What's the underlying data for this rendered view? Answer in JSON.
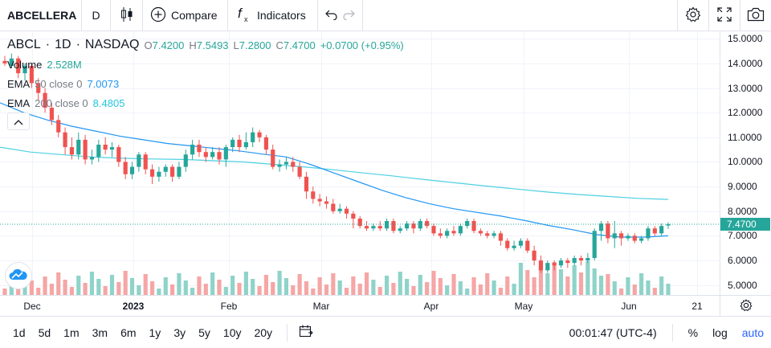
{
  "toolbar": {
    "symbol": "ABCELLERA",
    "interval": "D",
    "compare_label": "Compare",
    "indicators_label": "Indicators",
    "icons": [
      "candles-icon",
      "plus-circle-icon",
      "fx-icon",
      "undo-icon",
      "redo-icon",
      "settings-icon",
      "fullscreen-icon",
      "camera-icon"
    ]
  },
  "legend": {
    "ticker": "ABCL",
    "interval": "1D",
    "exchange": "NASDAQ",
    "open_label": "O",
    "open": "7.4200",
    "high_label": "H",
    "high": "7.5493",
    "low_label": "L",
    "low": "7.2800",
    "close_label": "C",
    "close": "7.4700",
    "change": "+0.0700 (+0.95%)",
    "volume_label": "Volume",
    "volume": "2.528M",
    "ema50_label": "EMA",
    "ema50_params": "50 close 0",
    "ema50_value": "7.0073",
    "ema200_label": "EMA",
    "ema200_params": "200 close 0",
    "ema200_value": "8.4805"
  },
  "price_axis": {
    "ticks": [
      "15.0000",
      "14.0000",
      "13.0000",
      "12.0000",
      "11.0000",
      "10.0000",
      "9.0000",
      "8.0000",
      "7.0000",
      "6.0000",
      "5.0000"
    ],
    "last_price": "7.4700"
  },
  "time_axis": {
    "ticks": [
      {
        "label": "Dec",
        "bold": false
      },
      {
        "label": "2023",
        "bold": true
      },
      {
        "label": "Feb",
        "bold": false
      },
      {
        "label": "Mar",
        "bold": false
      },
      {
        "label": "Apr",
        "bold": false
      },
      {
        "label": "May",
        "bold": false
      },
      {
        "label": "Jun",
        "bold": false
      },
      {
        "label": "21",
        "bold": false
      }
    ]
  },
  "bottom": {
    "ranges": [
      "1d",
      "5d",
      "1m",
      "3m",
      "6m",
      "1y",
      "3y",
      "5y",
      "10y",
      "20y"
    ],
    "time": "00:01:47 (UTC-4)",
    "percent": "%",
    "log": "log",
    "auto": "auto"
  },
  "colors": {
    "up": "#26a69a",
    "down": "#ef5350",
    "ema50": "#2196f3",
    "ema200": "#4dd0e1",
    "volume_up": "#8fd3c9",
    "volume_down": "#f5a6a5"
  },
  "chart_data": {
    "type": "candlestick",
    "ylim": [
      4.6,
      15.3
    ],
    "ema50": [
      12.4,
      12.0,
      11.7,
      11.45,
      11.25,
      11.05,
      10.9,
      10.75,
      10.65,
      10.55,
      10.45,
      10.32,
      10.2,
      9.9,
      9.55,
      9.2,
      8.85,
      8.55,
      8.3,
      8.1,
      7.95,
      7.8,
      7.62,
      7.42,
      7.25,
      7.05,
      6.95,
      6.95,
      7.0
    ],
    "ema200": [
      10.6,
      10.4,
      10.3,
      10.2,
      10.15,
      10.12,
      10.1,
      10.05,
      10.0,
      9.9,
      9.8,
      9.68,
      9.55,
      9.42,
      9.28,
      9.15,
      9.02,
      8.9,
      8.78,
      8.68,
      8.6,
      8.52,
      8.48
    ],
    "candles": [
      [
        14.1,
        14.0,
        14.3,
        13.9
      ],
      [
        13.9,
        14.2,
        14.4,
        13.8
      ],
      [
        14.2,
        13.6,
        14.3,
        13.4
      ],
      [
        13.6,
        13.9,
        14.0,
        13.3
      ],
      [
        13.9,
        13.2,
        14.0,
        13.0
      ],
      [
        13.2,
        12.8,
        13.4,
        12.5
      ],
      [
        12.8,
        12.2,
        13.0,
        12.0
      ],
      [
        12.2,
        11.7,
        12.4,
        11.5
      ],
      [
        11.7,
        11.2,
        11.9,
        11.0
      ],
      [
        11.2,
        10.6,
        11.4,
        10.3
      ],
      [
        10.6,
        10.3,
        11.0,
        10.1
      ],
      [
        10.3,
        10.9,
        11.2,
        10.1
      ],
      [
        10.9,
        10.1,
        11.1,
        9.9
      ],
      [
        10.1,
        10.2,
        10.5,
        9.9
      ],
      [
        10.2,
        10.7,
        10.9,
        10.0
      ],
      [
        10.7,
        10.5,
        11.0,
        10.3
      ],
      [
        10.5,
        10.6,
        10.8,
        10.2
      ],
      [
        10.6,
        10.0,
        10.7,
        9.8
      ],
      [
        10.0,
        9.5,
        10.2,
        9.3
      ],
      [
        9.5,
        9.8,
        10.0,
        9.3
      ],
      [
        9.8,
        10.3,
        10.4,
        9.6
      ],
      [
        10.3,
        9.7,
        10.4,
        9.5
      ],
      [
        9.7,
        9.4,
        9.9,
        9.1
      ],
      [
        9.4,
        9.6,
        9.8,
        9.2
      ],
      [
        9.6,
        9.8,
        9.9,
        9.4
      ],
      [
        9.8,
        9.4,
        9.9,
        9.2
      ],
      [
        9.4,
        9.8,
        10.0,
        9.3
      ],
      [
        9.8,
        10.3,
        10.5,
        9.6
      ],
      [
        10.3,
        10.7,
        10.9,
        10.1
      ],
      [
        10.7,
        10.4,
        10.9,
        10.2
      ],
      [
        10.4,
        10.2,
        10.6,
        10.0
      ],
      [
        10.2,
        10.4,
        10.6,
        10.1
      ],
      [
        10.4,
        10.1,
        10.6,
        9.9
      ],
      [
        10.1,
        10.6,
        10.7,
        9.8
      ],
      [
        10.6,
        10.9,
        11.0,
        10.4
      ],
      [
        10.9,
        10.6,
        11.1,
        10.4
      ],
      [
        10.6,
        10.8,
        11.2,
        10.5
      ],
      [
        10.8,
        11.2,
        11.4,
        10.6
      ],
      [
        11.2,
        11.0,
        11.3,
        10.8
      ],
      [
        11.0,
        10.5,
        11.1,
        10.3
      ],
      [
        10.5,
        9.8,
        10.7,
        9.7
      ],
      [
        9.8,
        9.9,
        10.1,
        9.6
      ],
      [
        9.9,
        10.0,
        10.2,
        9.7
      ],
      [
        10.0,
        9.8,
        10.2,
        9.6
      ],
      [
        9.8,
        9.4,
        10.0,
        9.3
      ],
      [
        9.4,
        8.8,
        9.6,
        8.5
      ],
      [
        8.8,
        8.5,
        9.0,
        8.3
      ],
      [
        8.5,
        8.4,
        8.7,
        8.2
      ],
      [
        8.4,
        8.3,
        8.6,
        8.1
      ],
      [
        8.3,
        8.0,
        8.5,
        7.9
      ],
      [
        8.0,
        8.1,
        8.3,
        7.9
      ],
      [
        8.1,
        7.9,
        8.2,
        7.7
      ],
      [
        7.9,
        7.7,
        8.0,
        7.3
      ],
      [
        7.7,
        7.4,
        7.8,
        7.3
      ],
      [
        7.4,
        7.3,
        7.6,
        7.2
      ],
      [
        7.3,
        7.4,
        7.5,
        7.2
      ],
      [
        7.4,
        7.3,
        7.6,
        7.2
      ],
      [
        7.3,
        7.6,
        7.7,
        7.2
      ],
      [
        7.6,
        7.2,
        7.7,
        7.1
      ],
      [
        7.2,
        7.3,
        7.4,
        7.1
      ],
      [
        7.3,
        7.5,
        7.6,
        7.2
      ],
      [
        7.5,
        7.3,
        7.6,
        7.1
      ],
      [
        7.3,
        7.6,
        7.7,
        7.2
      ],
      [
        7.6,
        7.4,
        7.7,
        7.3
      ],
      [
        7.4,
        7.1,
        7.5,
        7.0
      ],
      [
        7.1,
        7.0,
        7.3,
        6.9
      ],
      [
        7.0,
        7.2,
        7.3,
        6.9
      ],
      [
        7.2,
        7.1,
        7.4,
        7.0
      ],
      [
        7.1,
        7.4,
        7.5,
        7.0
      ],
      [
        7.4,
        7.6,
        7.7,
        7.3
      ],
      [
        7.6,
        7.2,
        7.7,
        7.1
      ],
      [
        7.2,
        7.1,
        7.3,
        7.0
      ],
      [
        7.1,
        7.0,
        7.2,
        6.9
      ],
      [
        7.0,
        7.1,
        7.2,
        6.9
      ],
      [
        7.1,
        6.8,
        7.2,
        6.6
      ],
      [
        6.8,
        6.5,
        6.9,
        6.4
      ],
      [
        6.5,
        6.6,
        6.8,
        6.4
      ],
      [
        6.6,
        6.8,
        6.9,
        6.5
      ],
      [
        6.8,
        6.4,
        6.9,
        6.3
      ],
      [
        6.4,
        6.0,
        6.6,
        5.8
      ],
      [
        6.0,
        5.6,
        6.2,
        5.5
      ],
      [
        5.6,
        5.9,
        6.0,
        5.5
      ],
      [
        5.9,
        5.8,
        6.0,
        5.6
      ],
      [
        5.8,
        6.0,
        6.1,
        5.7
      ],
      [
        6.0,
        5.9,
        6.1,
        5.7
      ],
      [
        5.9,
        6.1,
        6.2,
        5.8
      ],
      [
        6.1,
        6.0,
        6.2,
        5.8
      ],
      [
        6.0,
        6.1,
        6.3,
        5.9
      ],
      [
        6.1,
        7.2,
        7.3,
        6.0
      ],
      [
        7.2,
        7.5,
        7.6,
        6.8
      ],
      [
        7.5,
        6.9,
        7.6,
        6.7
      ],
      [
        6.9,
        7.1,
        7.6,
        6.5
      ],
      [
        7.1,
        6.9,
        7.2,
        6.6
      ],
      [
        6.9,
        7.0,
        7.1,
        6.8
      ],
      [
        7.0,
        6.8,
        7.1,
        6.7
      ],
      [
        6.8,
        6.9,
        7.0,
        6.7
      ],
      [
        6.9,
        7.3,
        7.4,
        6.8
      ],
      [
        7.3,
        7.1,
        7.4,
        7.0
      ],
      [
        7.1,
        7.4,
        7.5,
        7.0
      ],
      [
        7.42,
        7.47,
        7.5493,
        7.28
      ]
    ]
  }
}
